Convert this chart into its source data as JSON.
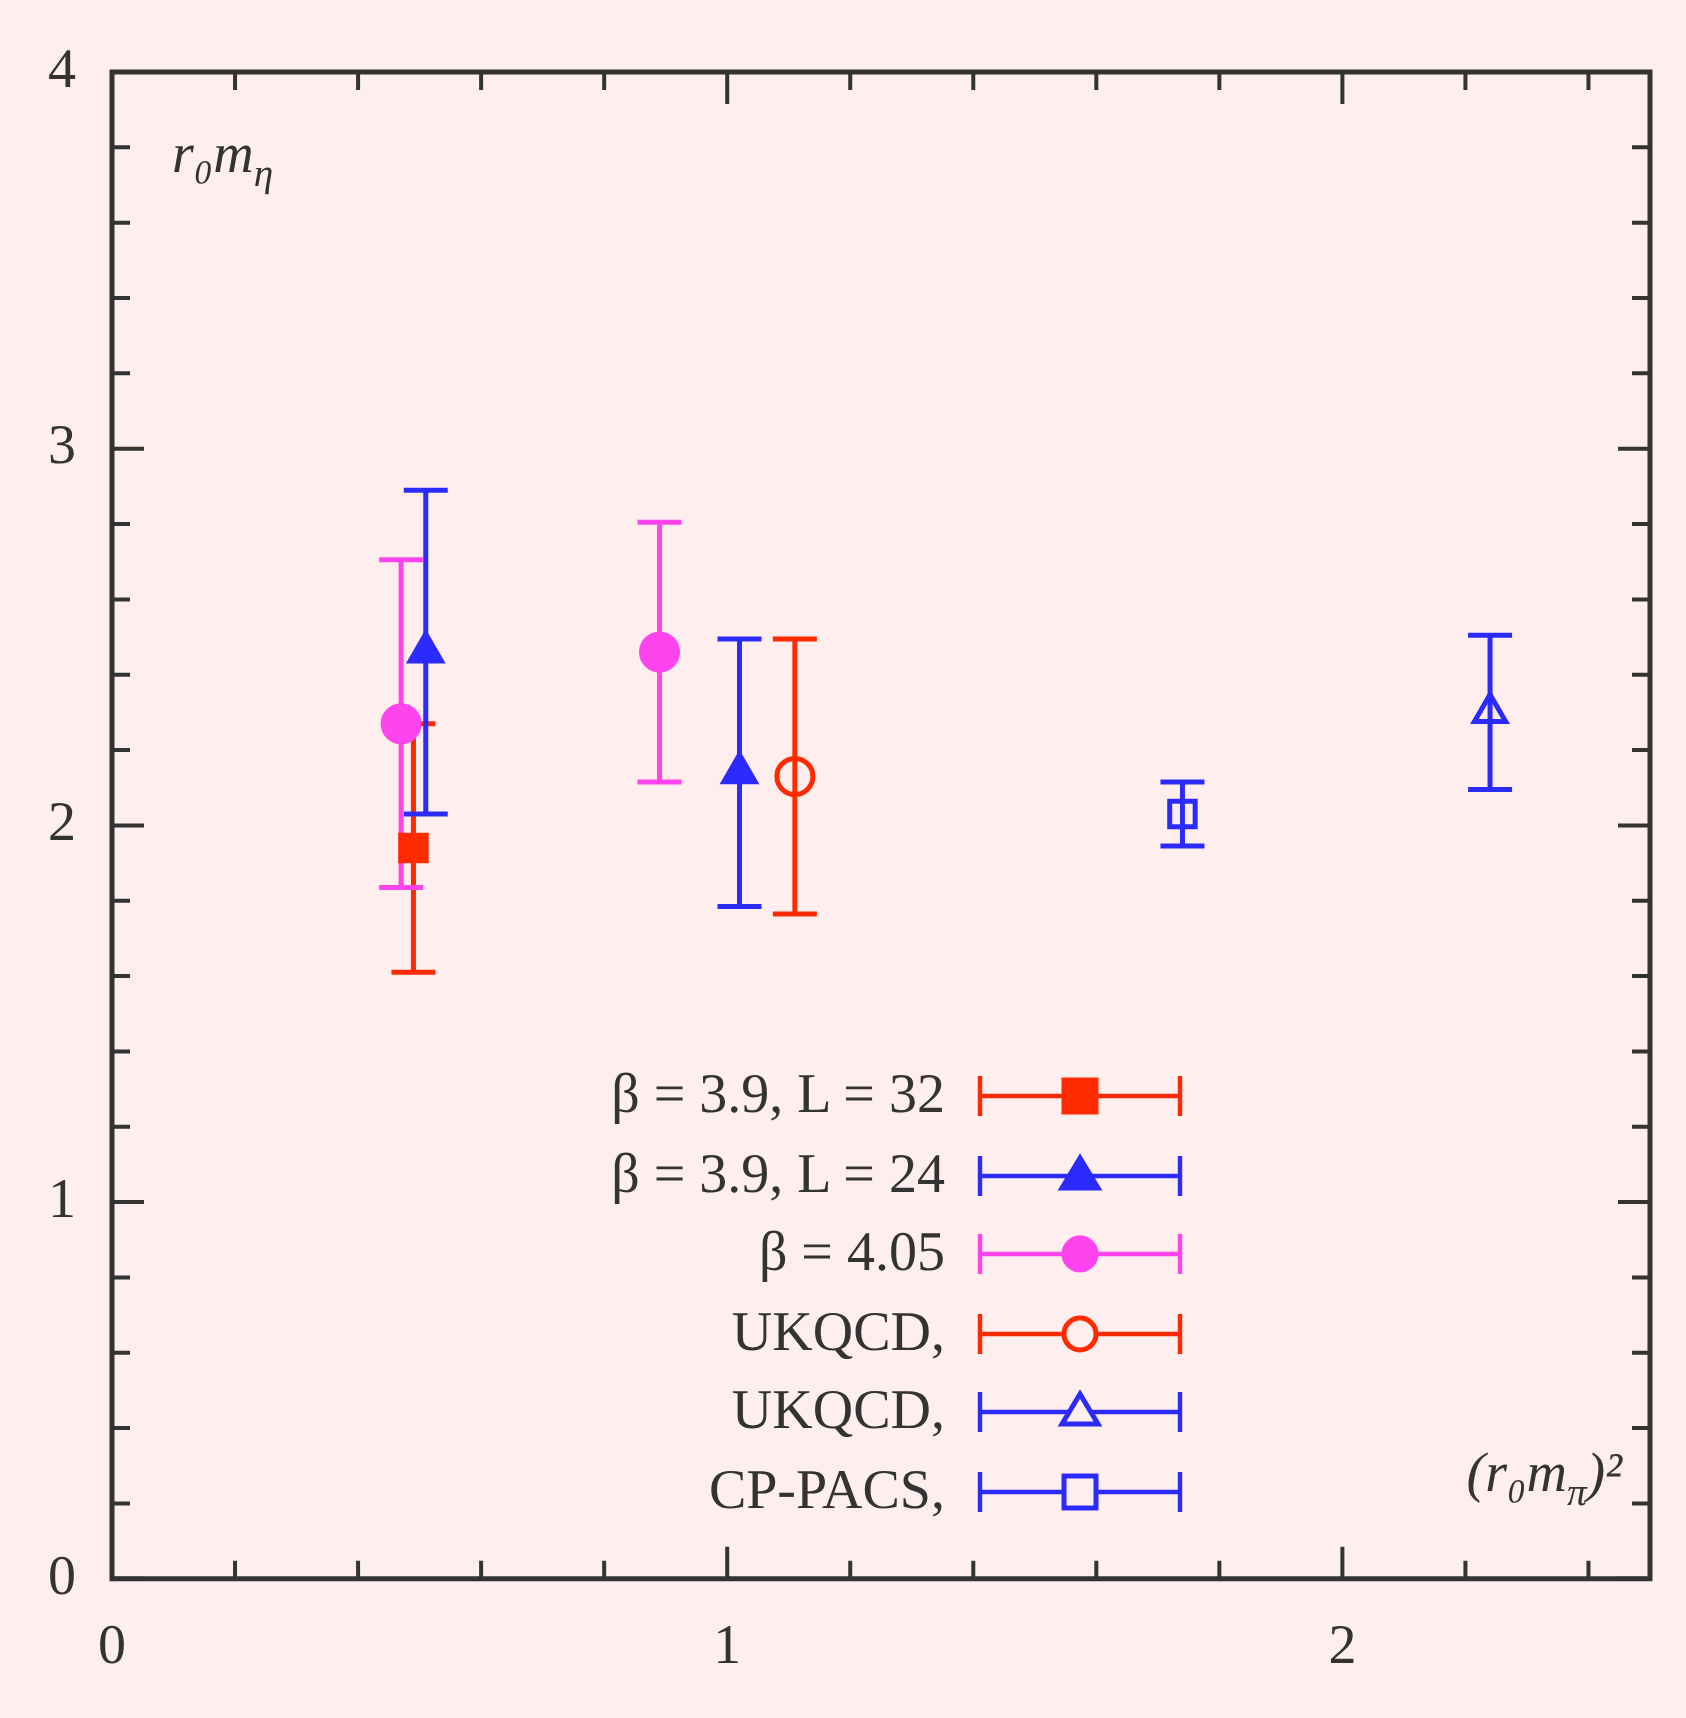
{
  "chart_data": {
    "type": "scatter",
    "xlabel": "(r₀m$_{π}$)²",
    "ylabel": "r₀m$_{η}$",
    "xlim": [
      0,
      2.5
    ],
    "ylim": [
      0,
      4
    ],
    "xticks": [
      0,
      {
        "value": 0.2,
        "label": null
      },
      {
        "value": 0.4,
        "label": null
      },
      {
        "value": 0.6,
        "label": null
      },
      {
        "value": 0.8,
        "label": null
      },
      1,
      {
        "value": 1.2,
        "label": null
      },
      {
        "value": 1.4,
        "label": null
      },
      {
        "value": 1.6,
        "label": null
      },
      {
        "value": 1.8,
        "label": null
      },
      2,
      {
        "value": 2.2,
        "label": null
      },
      {
        "value": 2.4,
        "label": null
      }
    ],
    "yticks": [
      0,
      {
        "value": 0.2,
        "label": null
      },
      {
        "value": 0.4,
        "label": null
      },
      {
        "value": 0.6,
        "label": null
      },
      {
        "value": 0.8,
        "label": null
      },
      1,
      {
        "value": 1.2,
        "label": null
      },
      {
        "value": 1.4,
        "label": null
      },
      {
        "value": 1.6,
        "label": null
      },
      {
        "value": 1.8,
        "label": null
      },
      2,
      {
        "value": 2.2,
        "label": null
      },
      {
        "value": 2.4,
        "label": null
      },
      {
        "value": 2.6,
        "label": null
      },
      {
        "value": 2.8,
        "label": null
      },
      3,
      {
        "value": 3.2,
        "label": null
      },
      {
        "value": 3.4,
        "label": null
      },
      {
        "value": 3.6,
        "label": null
      },
      {
        "value": 3.8,
        "label": null
      },
      4
    ],
    "grid": false,
    "legend": "bottom",
    "series": [
      {
        "name": "β = 3.9, L = 32",
        "color": "#ff2a00",
        "marker": "square",
        "x": [
          0.49
        ],
        "values": [
          1.94
        ],
        "errors": [
          0.33
        ]
      },
      {
        "name": "β = 3.9, L = 24",
        "color": "#2b2bff",
        "marker": "triangle",
        "x": [
          0.51,
          1.02
        ],
        "values": [
          2.46,
          2.14
        ],
        "errors": [
          0.43,
          0.355
        ]
      },
      {
        "name": "β = 4.05",
        "color": "#ff44ee",
        "marker": "circle",
        "x": [
          0.47,
          0.89
        ],
        "values": [
          2.27,
          2.46
        ],
        "errors": [
          0.435,
          0.345
        ]
      },
      {
        "name": "UKQCD,",
        "color": "#ff2a00",
        "marker": "circle-open",
        "x": [
          1.11
        ],
        "values": [
          2.13
        ],
        "errors": [
          0.365
        ]
      },
      {
        "name": "UKQCD,",
        "color": "#2b2bff",
        "marker": "triangle-open",
        "x": [
          2.24
        ],
        "values": [
          2.3
        ],
        "errors": [
          0.205
        ]
      },
      {
        "name": "CP-PACS,",
        "color": "#2b2bff",
        "marker": "square-open",
        "x": [
          1.74
        ],
        "values": [
          2.03
        ],
        "errors": [
          0.085
        ]
      }
    ]
  }
}
